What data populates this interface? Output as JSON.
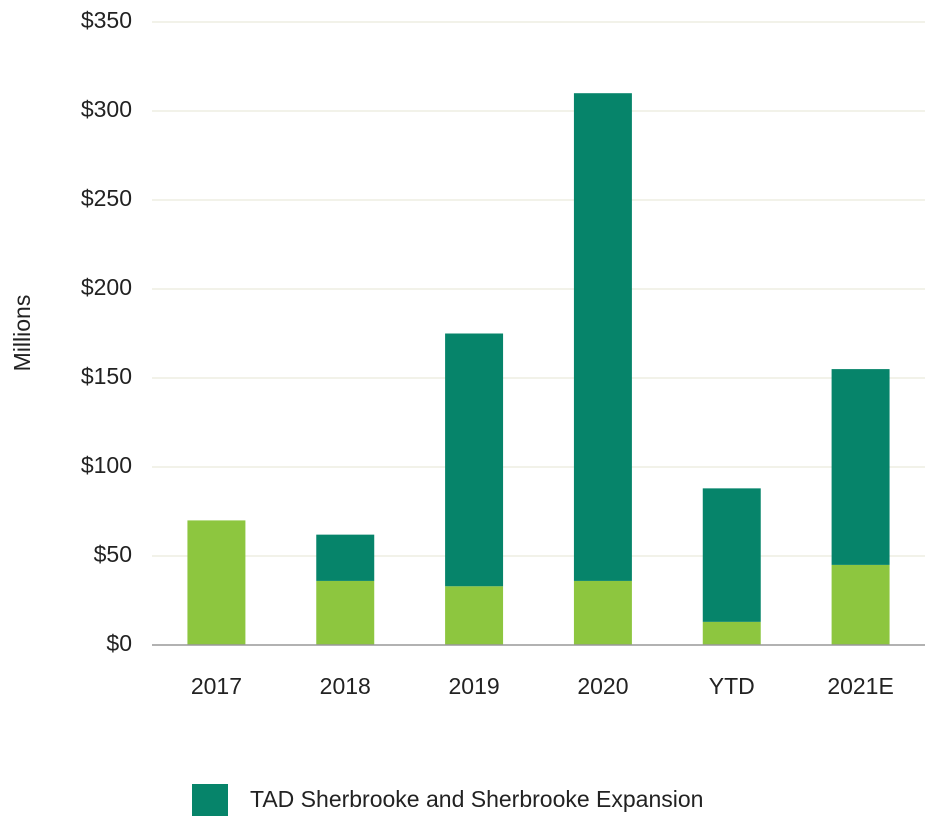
{
  "chart_data": {
    "type": "bar",
    "stacked": true,
    "ylabel": "Millions",
    "categories": [
      "2017",
      "2018",
      "2019",
      "2020",
      "YTD",
      "2021E"
    ],
    "series": [
      {
        "color": "#8dc63f",
        "values": [
          70,
          36,
          33,
          36,
          13,
          45
        ]
      },
      {
        "name": "TAD Sherbrooke and Sherbrooke Expansion",
        "color": "#06846a",
        "values": [
          0,
          26,
          142,
          274,
          75,
          110
        ]
      }
    ],
    "ylim": [
      0,
      350
    ],
    "yticks": [
      {
        "value": 0,
        "label": "$0"
      },
      {
        "value": 50,
        "label": "$50"
      },
      {
        "value": 100,
        "label": "$100"
      },
      {
        "value": 150,
        "label": "$150"
      },
      {
        "value": 200,
        "label": "$200"
      },
      {
        "value": 250,
        "label": "$250"
      },
      {
        "value": 300,
        "label": "$300"
      },
      {
        "value": 350,
        "label": "$350"
      }
    ],
    "grid": true,
    "legend": "bottom"
  }
}
